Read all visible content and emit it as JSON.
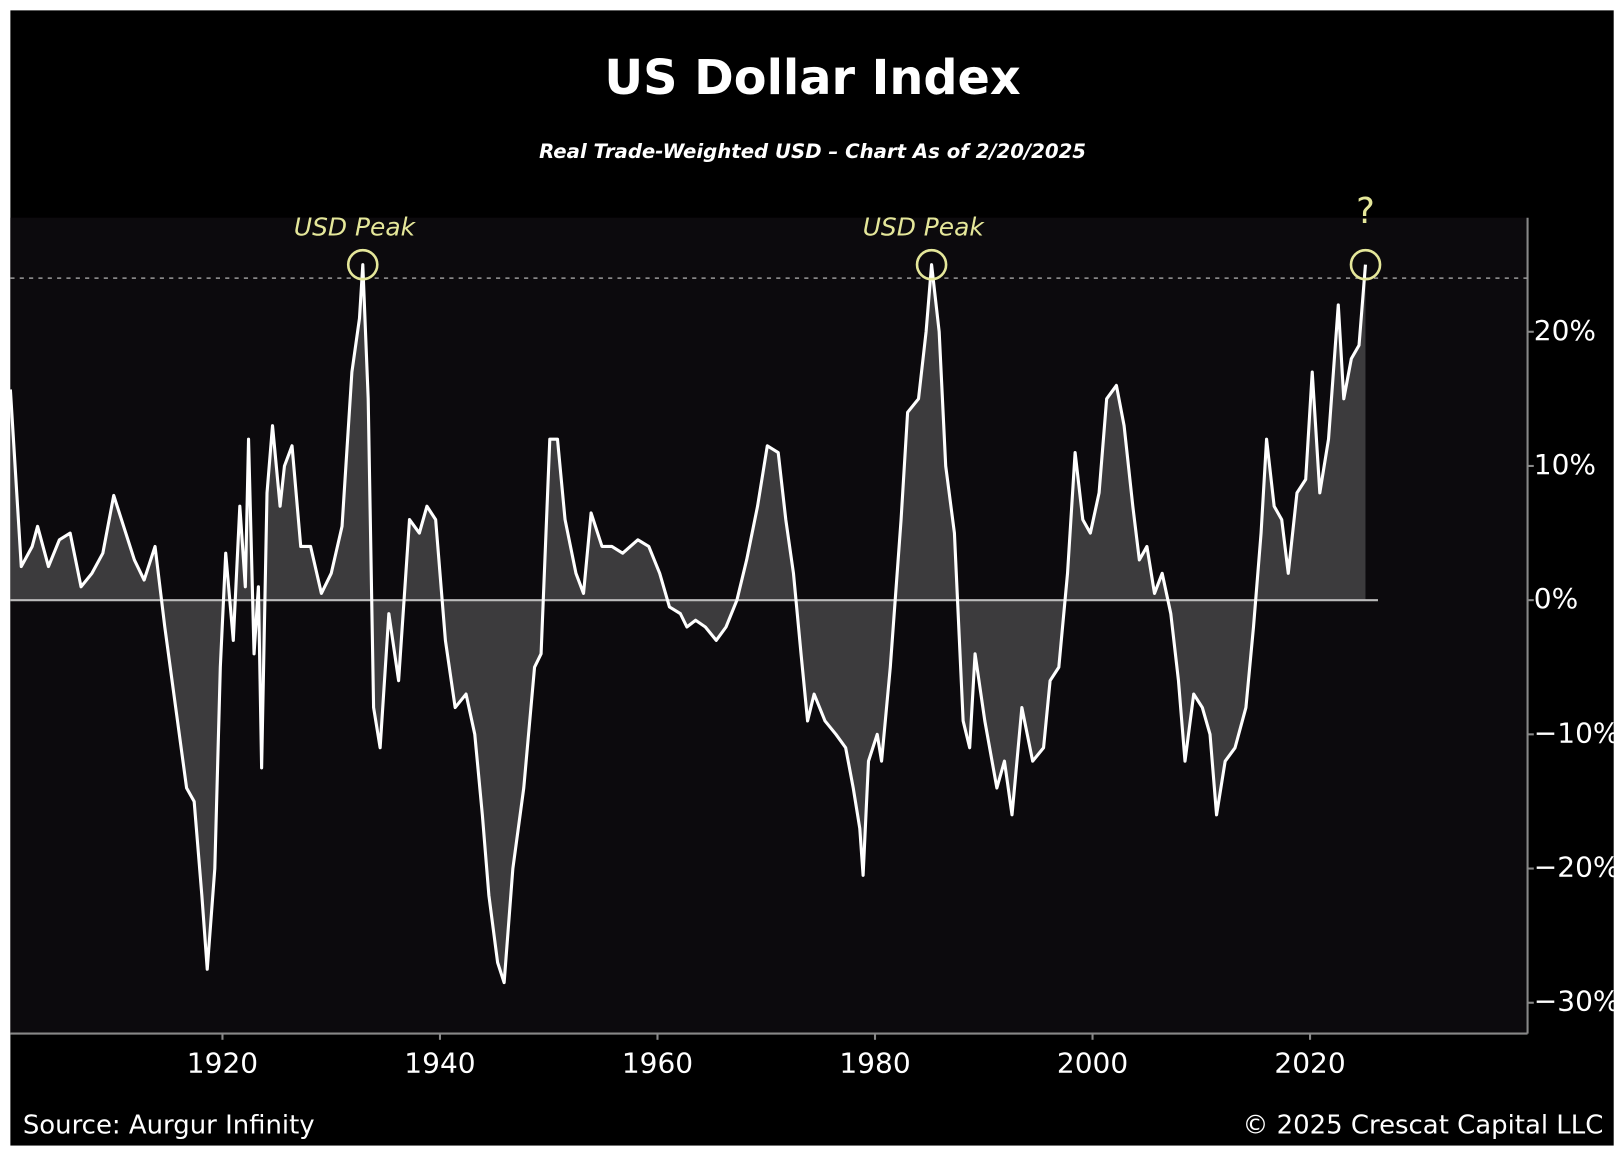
{
  "chart_data": {
    "type": "line",
    "title": "US Dollar Index",
    "subtitle": "Real Trade-Weighted USD – Chart As of 2/20/2025",
    "source": "Source: Aurgur Infinity",
    "credit": "© 2025 Crescat Capital LLC",
    "x": [
      1900.5,
      1901.5,
      1902.5,
      1903,
      1904,
      1905,
      1906,
      1907,
      1908,
      1909,
      1910,
      1911.9,
      1912.8,
      1913.8,
      1914.7,
      1915.7,
      1916.7,
      1917.4,
      1918.1,
      1918.6,
      1919.3,
      1919.8,
      1920.3,
      1921,
      1921.6,
      1922.1,
      1922.4,
      1922.9,
      1923.3,
      1923.6,
      1924.1,
      1924.6,
      1925.3,
      1925.7,
      1926.4,
      1927.2,
      1928.1,
      1929.1,
      1930,
      1931,
      1931.9,
      1932.6,
      1932.9,
      1933.4,
      1933.9,
      1934.5,
      1935.3,
      1936.2,
      1937.2,
      1938.1,
      1938.8,
      1939.6,
      1940.5,
      1941.4,
      1942.4,
      1943.2,
      1943.9,
      1944.5,
      1945.3,
      1945.9,
      1946.7,
      1947.7,
      1948.7,
      1949.3,
      1950.1,
      1950.8,
      1951.5,
      1952.5,
      1953.2,
      1953.9,
      1954.9,
      1955.8,
      1956.8,
      1958.2,
      1959.2,
      1960.2,
      1961.1,
      1962.1,
      1962.7,
      1963.5,
      1964.4,
      1965.4,
      1966.3,
      1967.3,
      1968.2,
      1969.2,
      1970.1,
      1971.1,
      1971.8,
      1972.5,
      1973.2,
      1973.8,
      1974.4,
      1975.4,
      1976.4,
      1977.3,
      1978,
      1978.6,
      1978.9,
      1979.4,
      1980.2,
      1980.6,
      1981.4,
      1982.4,
      1983,
      1984,
      1984.7,
      1985.2,
      1985.9,
      1986.5,
      1987.3,
      1988.1,
      1988.7,
      1989.2,
      1990.1,
      1991.2,
      1991.9,
      1992.6,
      1993.5,
      1994.5,
      1995.5,
      1996.1,
      1996.9,
      1997.7,
      1998.4,
      1999.1,
      1999.8,
      2000.6,
      2001.3,
      2002.2,
      2002.9,
      2003.7,
      2004.3,
      2005,
      2005.7,
      2006.4,
      2007.2,
      2007.9,
      2008.5,
      2009.3,
      2010.1,
      2010.8,
      2011.4,
      2012.2,
      2013.1,
      2014.1,
      2014.8,
      2015.5,
      2016,
      2016.7,
      2017.4,
      2018,
      2018.8,
      2019.6,
      2020.2,
      2020.9,
      2021.7,
      2022.6,
      2023.1,
      2023.8,
      2024.5,
      2025.1
    ],
    "series": [
      {
        "name": "Real Trade-Weighted USD",
        "color": "#ffffff",
        "values": [
          15.7,
          2.5,
          4,
          5.5,
          2.5,
          4.5,
          5,
          1,
          2,
          3.5,
          7.8,
          3,
          1.5,
          4,
          -2,
          -8,
          -14,
          -15,
          -22,
          -27.5,
          -20,
          -5,
          3.5,
          -3,
          7,
          1,
          12,
          -4,
          1,
          -12.5,
          8,
          13,
          7,
          10,
          11.5,
          4,
          4,
          0.5,
          2,
          5.5,
          17,
          21,
          25,
          15,
          -8,
          -11,
          -1,
          -6,
          6,
          5,
          7,
          6,
          -3,
          -8,
          -7,
          -10,
          -16,
          -22,
          -27,
          -28.5,
          -20,
          -14,
          -5,
          -4,
          12,
          12,
          6,
          2,
          0.5,
          6.5,
          4,
          4,
          3.5,
          4.5,
          4,
          2,
          -0.5,
          -1,
          -2,
          -1.5,
          -2,
          -3,
          -2,
          0,
          3,
          7,
          11.5,
          11,
          6,
          2,
          -4,
          -9,
          -7,
          -9,
          -10,
          -11,
          -14,
          -17,
          -20.5,
          -12,
          -10,
          -12,
          -5,
          6,
          14,
          15,
          20,
          25,
          20,
          10,
          5,
          -9,
          -11,
          -4,
          -9,
          -14,
          -12,
          -16,
          -8,
          -12,
          -11,
          -6,
          -5,
          2,
          11,
          6,
          5,
          8,
          15,
          16,
          13,
          7,
          3,
          4,
          0.5,
          2,
          -1,
          -6,
          -12,
          -7,
          -8,
          -10,
          -16,
          -12,
          -11,
          -8,
          -2,
          5,
          12,
          7,
          6,
          2,
          8,
          9,
          17,
          8,
          12,
          22,
          15,
          18,
          19,
          25
        ]
      }
    ],
    "annotations": [
      {
        "text": "USD Peak",
        "x": 1932.9
      },
      {
        "text": "USD Peak",
        "x": 1985.2
      },
      {
        "text": "?",
        "x": 2025.1
      }
    ],
    "hline": 24,
    "xlim": [
      1900.5,
      2040
    ],
    "ylim": [
      -32.3,
      28.5
    ],
    "xticks": [
      1920,
      1940,
      1960,
      1980,
      2000,
      2020
    ],
    "yticks": [
      {
        "value": -30,
        "label": "−30%"
      },
      {
        "value": -20,
        "label": "−20%"
      },
      {
        "value": -10,
        "label": "−10%"
      },
      {
        "value": 0,
        "label": "0%"
      },
      {
        "value": 10,
        "label": "10%"
      },
      {
        "value": 20,
        "label": "20%"
      }
    ]
  }
}
